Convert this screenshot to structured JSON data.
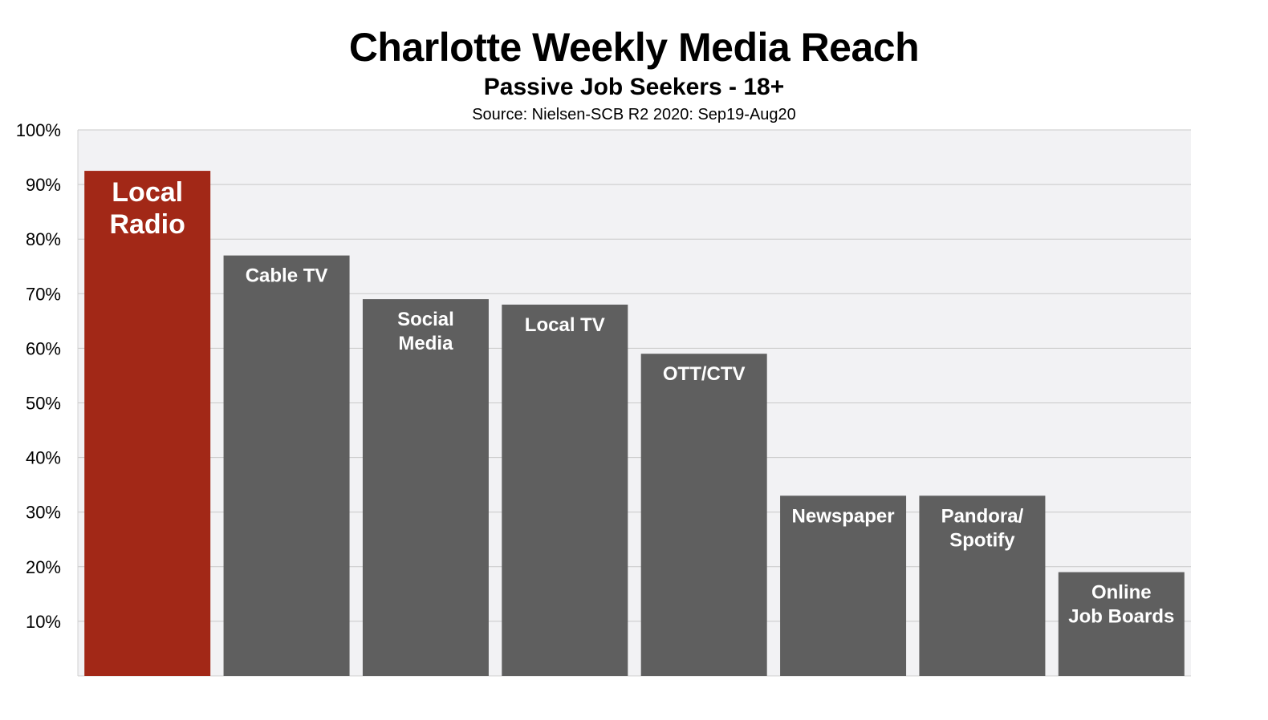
{
  "chart_data": {
    "type": "bar",
    "title": "Charlotte Weekly Media Reach",
    "subtitle": "Passive Job Seekers - 18+",
    "source": "Source: Nielsen-SCB R2 2020: Sep19-Aug20",
    "xlabel": "",
    "ylabel": "",
    "ylim": [
      0,
      100
    ],
    "y_ticks": [
      "100%",
      "90%",
      "80%",
      "70%",
      "60%",
      "50%",
      "40%",
      "30%",
      "20%",
      "10%"
    ],
    "grid": true,
    "legend": "none",
    "categories": [
      [
        "Local",
        "Radio"
      ],
      [
        "Cable TV"
      ],
      [
        "Social",
        "Media"
      ],
      [
        "Local TV"
      ],
      [
        "OTT/CTV"
      ],
      [
        "Newspaper"
      ],
      [
        "Pandora/",
        "Spotify"
      ],
      [
        "Online",
        "Job Boards"
      ]
    ],
    "values": [
      92.5,
      77,
      69,
      68,
      59,
      33,
      33,
      19
    ],
    "colors": {
      "highlight": "#a22817",
      "default": "#5f5f5f",
      "plot_background": "#f2f2f4",
      "gridline": "#c8c8c8"
    }
  }
}
